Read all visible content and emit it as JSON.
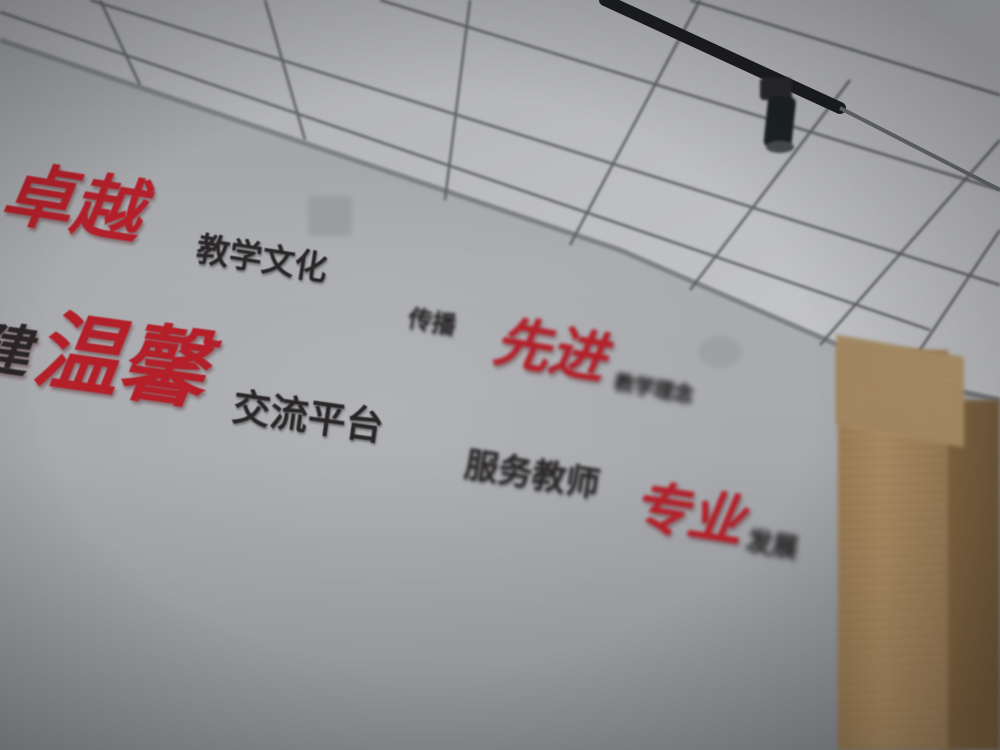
{
  "slogans": {
    "row1": {
      "zhuoyue": "卓越",
      "jiaoxue_wenhua": "教学文化",
      "chuanbo": "传播",
      "xianjin": "先进",
      "jiaoxue_linian": "教学理念"
    },
    "row2": {
      "jian": "建",
      "wenxin": "温馨",
      "jiaoliu_pingtai": "交流平台",
      "fuwu_jiaoshi": "服务教师",
      "zhuanye": "专业",
      "fazhan": "发展"
    }
  },
  "colors": {
    "calligraphy_red": "#b3202a",
    "text_black": "#2a2627",
    "wall": "#a9abaf",
    "ceiling": "#b7b8bb",
    "wood": "#b08f63"
  },
  "icons": {
    "spotlight": "track-spotlight-icon"
  }
}
